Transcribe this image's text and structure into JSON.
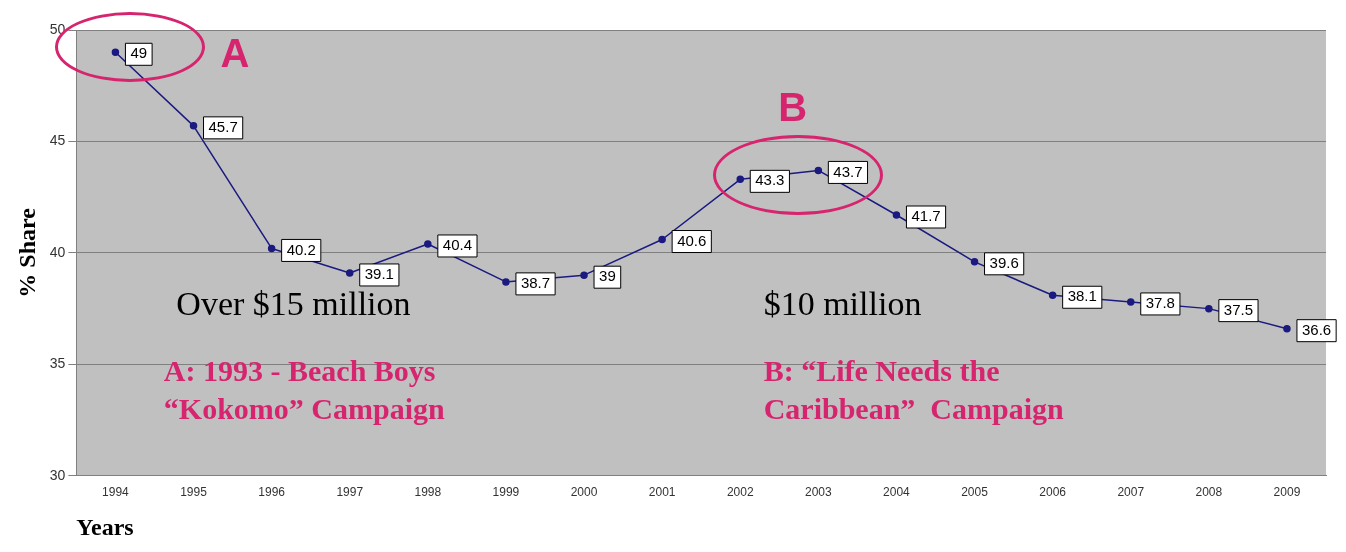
{
  "chart_data": {
    "type": "line",
    "xlabel": "Years",
    "ylabel": "% Share",
    "categories": [
      "1994",
      "1995",
      "1996",
      "1997",
      "1998",
      "1999",
      "2000",
      "2001",
      "2002",
      "2003",
      "2004",
      "2005",
      "2006",
      "2007",
      "2008",
      "2009"
    ],
    "series": [
      {
        "color": "#1a1a80",
        "values": [
          49,
          45.7,
          40.2,
          39.1,
          40.4,
          38.7,
          39,
          40.6,
          43.3,
          43.7,
          41.7,
          39.6,
          38.1,
          37.8,
          37.5,
          36.6
        ]
      }
    ],
    "ylim": [
      30,
      50
    ],
    "yticks": [
      30,
      35,
      40,
      45,
      50
    ],
    "grid": "y",
    "marker": "circle",
    "data_labels": true,
    "annotations": [
      {
        "text": "A",
        "x": "1994",
        "y": 49
      },
      {
        "text": "B",
        "x": "2003",
        "y": 43.7
      },
      "Over $15 million",
      "$10 million",
      "A: 1993 - Beach Boys\n“Kokomo” Campaign",
      "B: “Life Needs the\nCaribbean”  Campaign"
    ]
  }
}
